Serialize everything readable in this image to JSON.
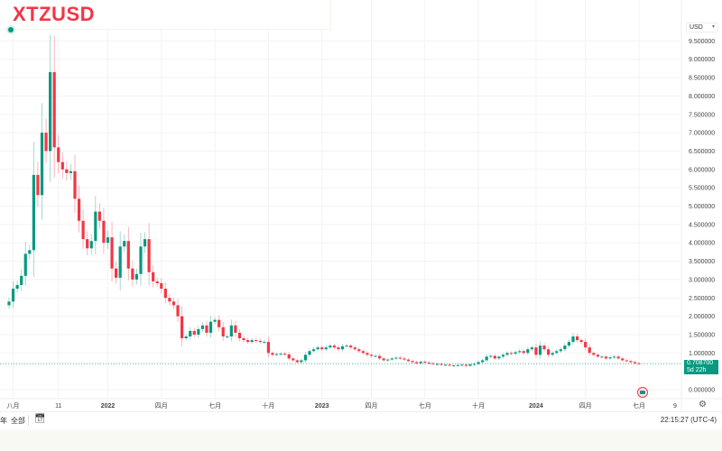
{
  "header": {
    "symbol": "XTZUSD"
  },
  "axis": {
    "currency": "USD"
  },
  "last_price": {
    "value": "0.708700",
    "countdown": "5d 22h"
  },
  "toolbar": {
    "range_partial": "年",
    "range_all": "全部",
    "time": "22:15:27 (UTC-4)"
  },
  "colors": {
    "up": "#089981",
    "down": "#f23645",
    "title": "#f23645"
  },
  "chart_data": {
    "type": "candlestick",
    "interval": "weekly",
    "ylim": [
      0,
      9.5
    ],
    "y_ticks": [
      "9.500000",
      "9.000000",
      "8.500000",
      "8.000000",
      "7.500000",
      "7.000000",
      "6.500000",
      "6.000000",
      "5.500000",
      "5.000000",
      "4.500000",
      "4.000000",
      "3.500000",
      "3.000000",
      "2.500000",
      "2.000000",
      "1.500000",
      "1.000000",
      "0.000000"
    ],
    "y_tick_values": [
      9.5,
      9,
      8.5,
      8,
      7.5,
      7,
      6.5,
      6,
      5.5,
      5,
      4.5,
      4,
      3.5,
      3,
      2.5,
      2,
      1.5,
      1,
      0
    ],
    "x_ticks": [
      {
        "label": "八月",
        "index": 1
      },
      {
        "label": "11",
        "index": 12
      },
      {
        "label": "2022",
        "index": 24
      },
      {
        "label": "四月",
        "index": 37
      },
      {
        "label": "七月",
        "index": 50
      },
      {
        "label": "十月",
        "index": 63
      },
      {
        "label": "2023",
        "index": 76
      },
      {
        "label": "四月",
        "index": 88
      },
      {
        "label": "七月",
        "index": 101
      },
      {
        "label": "十月",
        "index": 114
      },
      {
        "label": "2024",
        "index": 128
      },
      {
        "label": "四月",
        "index": 140
      },
      {
        "label": "七月",
        "index": 153
      },
      {
        "label": "9",
        "index": 162
      }
    ],
    "closes": [
      2.4,
      2.75,
      2.85,
      3.1,
      3.7,
      3.8,
      5.85,
      5.3,
      7.0,
      6.5,
      8.65,
      6.6,
      6.2,
      6.0,
      5.9,
      5.95,
      5.2,
      4.6,
      4.1,
      3.85,
      4.05,
      4.85,
      4.6,
      4.0,
      4.15,
      3.3,
      3.05,
      3.9,
      4.05,
      3.3,
      3.0,
      3.15,
      3.9,
      4.1,
      3.2,
      2.95,
      2.9,
      2.75,
      2.5,
      2.4,
      2.3,
      2.0,
      1.4,
      1.45,
      1.6,
      1.5,
      1.65,
      1.75,
      1.55,
      1.85,
      1.9,
      1.7,
      1.45,
      1.45,
      1.75,
      1.55,
      1.4,
      1.35,
      1.3,
      1.35,
      1.33,
      1.3,
      1.3,
      1.0,
      0.95,
      0.97,
      0.98,
      0.96,
      0.85,
      0.8,
      0.75,
      0.8,
      0.95,
      1.05,
      1.1,
      1.15,
      1.1,
      1.15,
      1.2,
      1.15,
      1.1,
      1.18,
      1.2,
      1.15,
      1.1,
      1.05,
      1.0,
      0.95,
      0.92,
      0.92,
      0.85,
      0.8,
      0.82,
      0.85,
      0.87,
      0.85,
      0.82,
      0.78,
      0.75,
      0.72,
      0.76,
      0.74,
      0.72,
      0.7,
      0.7,
      0.68,
      0.68,
      0.66,
      0.66,
      0.67,
      0.68,
      0.65,
      0.69,
      0.7,
      0.75,
      0.8,
      0.9,
      0.92,
      0.85,
      0.9,
      0.95,
      1.0,
      0.98,
      1.02,
      1.05,
      1.0,
      1.1,
      1.15,
      0.95,
      1.2,
      1.1,
      0.95,
      1.0,
      1.05,
      1.1,
      1.2,
      1.3,
      1.45,
      1.35,
      1.3,
      1.15,
      1.0,
      0.95,
      0.9,
      0.9,
      0.85,
      0.88,
      0.9,
      0.85,
      0.8,
      0.78,
      0.75,
      0.72,
      0.7087
    ],
    "first_open": 2.3,
    "last": 0.7087
  }
}
